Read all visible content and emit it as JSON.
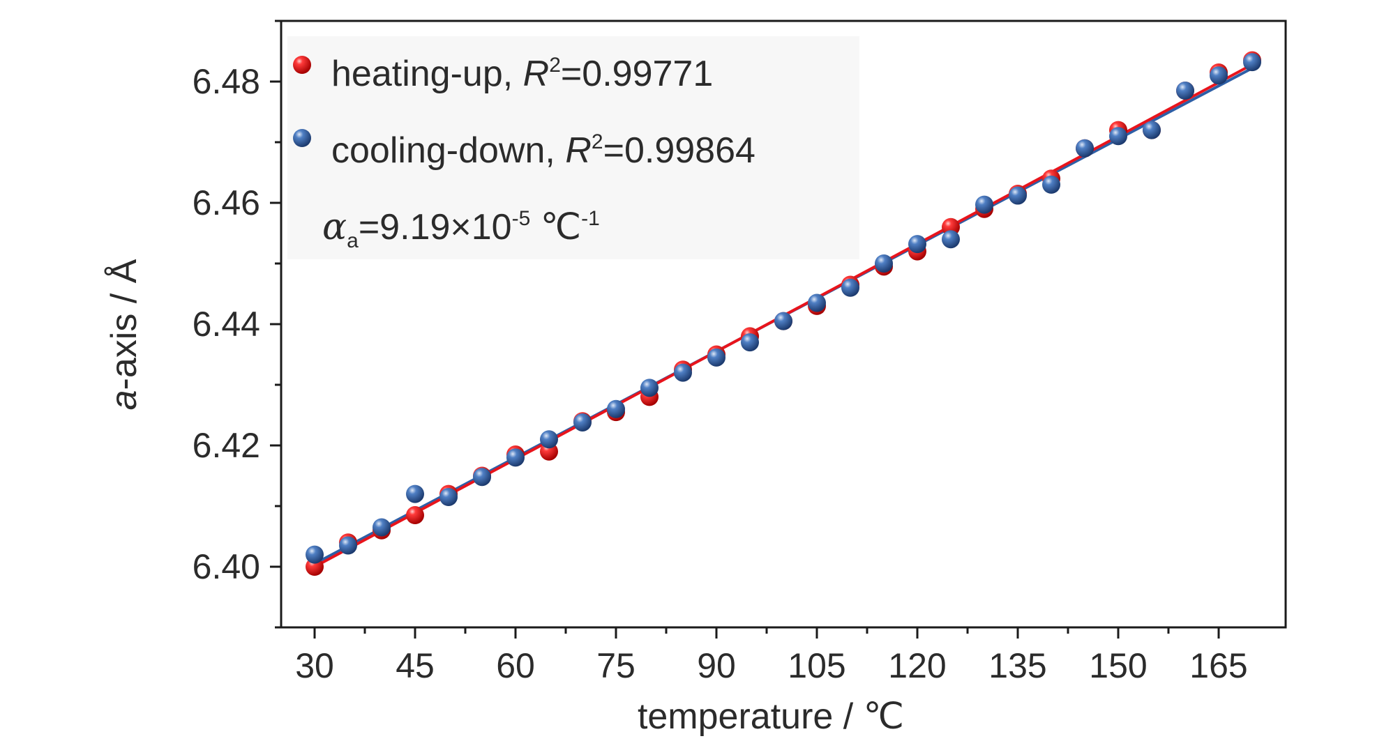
{
  "chart_data": {
    "type": "scatter",
    "xlabel": "temperature / ℃",
    "ylabel_italic": "a",
    "ylabel_rest": "-axis / Å",
    "xlim": [
      25,
      175
    ],
    "ylim": [
      6.39,
      6.49
    ],
    "x_ticks": [
      30,
      45,
      60,
      75,
      90,
      105,
      120,
      135,
      150,
      165
    ],
    "y_ticks": [
      6.4,
      6.42,
      6.44,
      6.46,
      6.48
    ],
    "y_tick_labels": [
      "6.40",
      "6.42",
      "6.44",
      "6.46",
      "6.48"
    ],
    "legend_position": "top-left",
    "series": [
      {
        "name": "heating-up",
        "r2_label": "R",
        "r2_value": "=0.99771",
        "color": "#e8141c",
        "x": [
          30,
          35,
          40,
          45,
          50,
          55,
          60,
          65,
          70,
          75,
          80,
          85,
          90,
          95,
          100,
          105,
          110,
          115,
          120,
          125,
          130,
          135,
          140,
          145,
          150,
          155,
          160,
          165,
          170
        ],
        "y": [
          6.4,
          6.404,
          6.406,
          6.4085,
          6.412,
          6.415,
          6.4185,
          6.419,
          6.424,
          6.4255,
          6.428,
          6.4325,
          6.435,
          6.438,
          6.4405,
          6.443,
          6.4465,
          6.4495,
          6.452,
          6.456,
          6.459,
          6.4615,
          6.464,
          6.469,
          6.472,
          6.472,
          6.4785,
          6.4815,
          6.4835
        ],
        "fit": {
          "x": [
            30,
            170
          ],
          "y": [
            6.4,
            6.4828
          ]
        }
      },
      {
        "name": "cooling-down",
        "r2_label": "R",
        "r2_value": "=0.99864",
        "color": "#2e5fa6",
        "x": [
          30,
          35,
          40,
          45,
          50,
          55,
          60,
          65,
          70,
          75,
          80,
          85,
          90,
          95,
          100,
          105,
          110,
          115,
          120,
          125,
          130,
          135,
          140,
          145,
          150,
          155,
          160,
          165,
          170
        ],
        "y": [
          6.402,
          6.4035,
          6.4065,
          6.412,
          6.4115,
          6.4148,
          6.418,
          6.421,
          6.4238,
          6.426,
          6.4295,
          6.432,
          6.4345,
          6.437,
          6.4405,
          6.4435,
          6.446,
          6.45,
          6.4532,
          6.454,
          6.4597,
          6.4612,
          6.463,
          6.469,
          6.471,
          6.472,
          6.4785,
          6.481,
          6.4832
        ],
        "fit": {
          "x": [
            30,
            170
          ],
          "y": [
            6.4005,
            6.4822
          ]
        }
      }
    ],
    "annotation": {
      "symbol": "α",
      "subscript": "a",
      "value": "=9.19×10",
      "exponent": "-5",
      "unit": "℃",
      "unit_exponent": "-1"
    }
  }
}
